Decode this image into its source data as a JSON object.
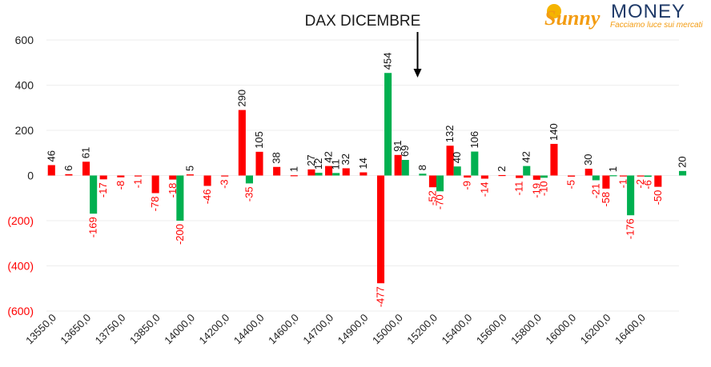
{
  "brand": {
    "word1": "Sunny",
    "word2": "MONEY",
    "tagline": "Facciamo luce sui mercati",
    "colors": {
      "orange": "#f39c12",
      "navy": "#1f3a68"
    }
  },
  "chart_data": {
    "type": "bar",
    "title": "DAX DICEMBRE",
    "xlabel": "",
    "ylabel": "",
    "ylim": [
      -600,
      600
    ],
    "yticks": [
      600,
      400,
      200,
      0,
      -200,
      -400,
      -600
    ],
    "yticklabels": [
      "600",
      "400",
      "200",
      "0",
      "(200)",
      "(400)",
      "(600)"
    ],
    "positive_color": "#00b050",
    "negative_color": "#ff0000",
    "grid": true,
    "xticklabels": [
      "13550,0",
      "13650,0",
      "13750,0",
      "13850,0",
      "14000,0",
      "14200,0",
      "14400,0",
      "14600,0",
      "14700,0",
      "14900,0",
      "15000,0",
      "15200,0",
      "15400,0",
      "15600,0",
      "15800,0",
      "16000,0",
      "16200,0",
      "16400,0"
    ],
    "groups": [
      {
        "category": "13550,0",
        "red": 46,
        "green": null
      },
      {
        "category": "",
        "red": 6,
        "green": null
      },
      {
        "category": "13650,0",
        "red": 61,
        "green": -169
      },
      {
        "category": "",
        "red": -17,
        "green": null
      },
      {
        "category": "13750,0",
        "red": -8,
        "green": null
      },
      {
        "category": "",
        "red": -1,
        "green": null
      },
      {
        "category": "13850,0",
        "red": -78,
        "green": null
      },
      {
        "category": "",
        "red": -18,
        "green": -200
      },
      {
        "category": "14000,0",
        "red": 5,
        "green": null
      },
      {
        "category": "",
        "red": -46,
        "green": null
      },
      {
        "category": "14200,0",
        "red": -3,
        "green": null
      },
      {
        "category": "",
        "red": 290,
        "green": -35
      },
      {
        "category": "14400,0",
        "red": 105,
        "green": null
      },
      {
        "category": "",
        "red": 38,
        "green": null
      },
      {
        "category": "14600,0",
        "red": 1,
        "green": null
      },
      {
        "category": "",
        "red": 27,
        "green": 12
      },
      {
        "category": "14700,0",
        "red": 42,
        "green": 11
      },
      {
        "category": "",
        "red": 32,
        "green": null
      },
      {
        "category": "14900,0",
        "red": 14,
        "green": null
      },
      {
        "category": "",
        "red": -477,
        "green": 454
      },
      {
        "category": "15000,0",
        "red": 91,
        "green": 69
      },
      {
        "category": "",
        "red": null,
        "green": 8
      },
      {
        "category": "15200,0",
        "red": -52,
        "green": -70
      },
      {
        "category": "",
        "red": 132,
        "green": 40
      },
      {
        "category": "15400,0",
        "red": -9,
        "green": 106
      },
      {
        "category": "",
        "red": -14,
        "green": null
      },
      {
        "category": "15600,0",
        "red": 2,
        "green": null
      },
      {
        "category": "",
        "red": -11,
        "green": 42
      },
      {
        "category": "15800,0",
        "red": -19,
        "green": -10
      },
      {
        "category": "",
        "red": 140,
        "green": null
      },
      {
        "category": "16000,0",
        "red": -5,
        "green": null
      },
      {
        "category": "",
        "red": 30,
        "green": -21
      },
      {
        "category": "16200,0",
        "red": -58,
        "green": 1
      },
      {
        "category": "",
        "red": -1,
        "green": -176
      },
      {
        "category": "16400,0",
        "red": -2,
        "green": -6
      },
      {
        "category": "",
        "red": -50,
        "green": null
      },
      {
        "category": "",
        "red": null,
        "green": 20
      }
    ],
    "annotation": {
      "type": "arrow-down",
      "at_group": 21
    }
  }
}
